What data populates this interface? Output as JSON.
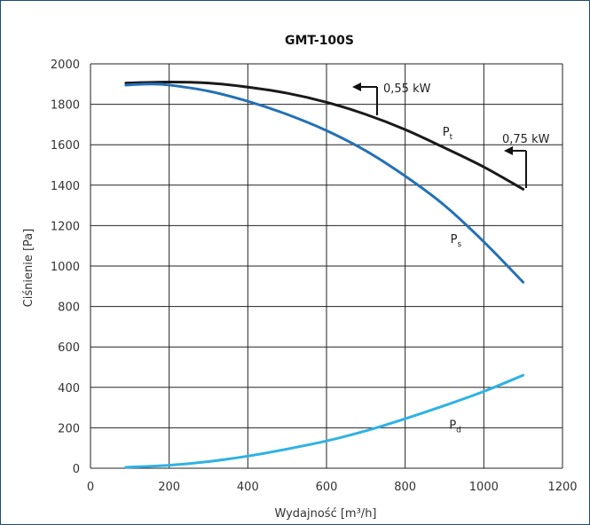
{
  "chart_data": {
    "type": "line",
    "title": "GMT-100S",
    "xlabel": "Wydajność [m³/h]",
    "ylabel": "Ciśnienie [Pa]",
    "xlim": [
      0,
      1200
    ],
    "ylim": [
      0,
      2000
    ],
    "x_ticks": [
      "0",
      "200",
      "400",
      "600",
      "800",
      "1000",
      "1200"
    ],
    "y_ticks": [
      "0",
      "200",
      "400",
      "600",
      "800",
      "1000",
      "1200",
      "1400",
      "1600",
      "1800",
      "2000"
    ],
    "grid": true,
    "series": [
      {
        "name": "Pt",
        "label_main": "P",
        "label_sub": "t",
        "color": "#1a1a1a",
        "x": [
          90,
          200,
          300,
          400,
          500,
          600,
          700,
          800,
          900,
          1000,
          1100
        ],
        "y": [
          1905,
          1910,
          1905,
          1885,
          1855,
          1810,
          1750,
          1675,
          1585,
          1490,
          1380
        ]
      },
      {
        "name": "Ps",
        "label_main": "P",
        "label_sub": "s",
        "color": "#2471b5",
        "x": [
          90,
          150,
          200,
          300,
          400,
          500,
          600,
          700,
          800,
          900,
          1000,
          1100
        ],
        "y": [
          1895,
          1900,
          1895,
          1865,
          1815,
          1750,
          1670,
          1570,
          1445,
          1300,
          1120,
          920
        ]
      },
      {
        "name": "Pd",
        "label_main": "P",
        "label_sub": "d",
        "color": "#2fb2e4",
        "x": [
          90,
          200,
          300,
          400,
          500,
          600,
          700,
          800,
          900,
          1000,
          1100
        ],
        "y": [
          5,
          15,
          33,
          60,
          95,
          135,
          185,
          245,
          310,
          380,
          460
        ]
      }
    ],
    "annotations": [
      {
        "text": "0,55 kW",
        "x": 870,
        "y": 1843
      },
      {
        "text": "0,75 kW",
        "x": 1086,
        "y": 1632
      }
    ]
  }
}
